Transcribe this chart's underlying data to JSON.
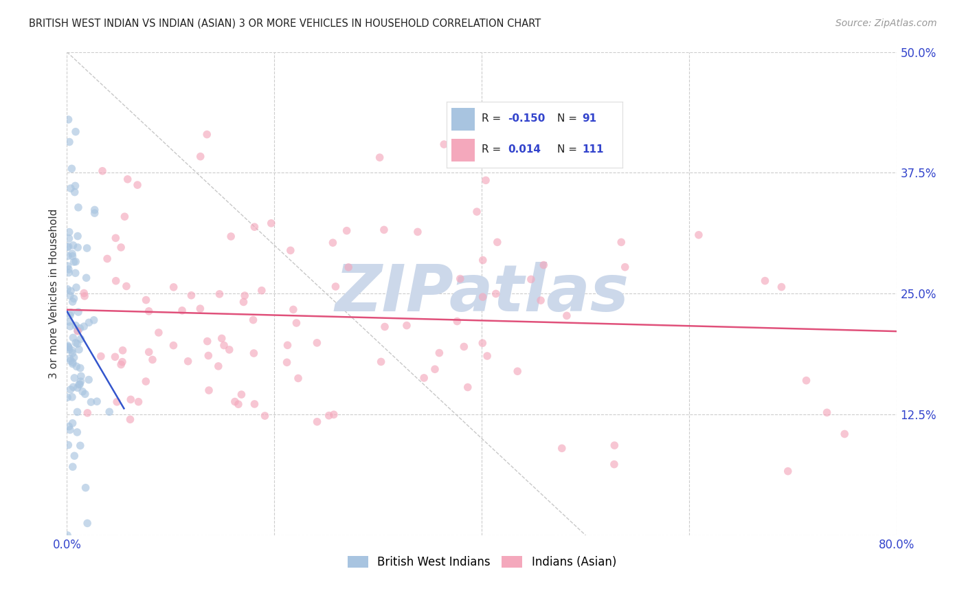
{
  "title": "BRITISH WEST INDIAN VS INDIAN (ASIAN) 3 OR MORE VEHICLES IN HOUSEHOLD CORRELATION CHART",
  "source": "Source: ZipAtlas.com",
  "ylabel": "3 or more Vehicles in Household",
  "xlim": [
    0,
    0.8
  ],
  "ylim": [
    0,
    0.5
  ],
  "background_color": "#ffffff",
  "grid_color": "#cccccc",
  "watermark": "ZIPatlas",
  "watermark_color": "#ccd8ea",
  "series1_label": "British West Indians",
  "series1_R": "-0.150",
  "series1_N": "91",
  "series1_dot_color": "#a8c4e0",
  "series1_trend_color": "#3355cc",
  "series2_label": "Indians (Asian)",
  "series2_R": "0.014",
  "series2_N": "111",
  "series2_dot_color": "#f4a8bc",
  "series2_trend_color": "#e0507a",
  "legend_text_color": "#222222",
  "legend_value_color": "#3344cc",
  "dot_size": 70,
  "dot_alpha": 0.65
}
